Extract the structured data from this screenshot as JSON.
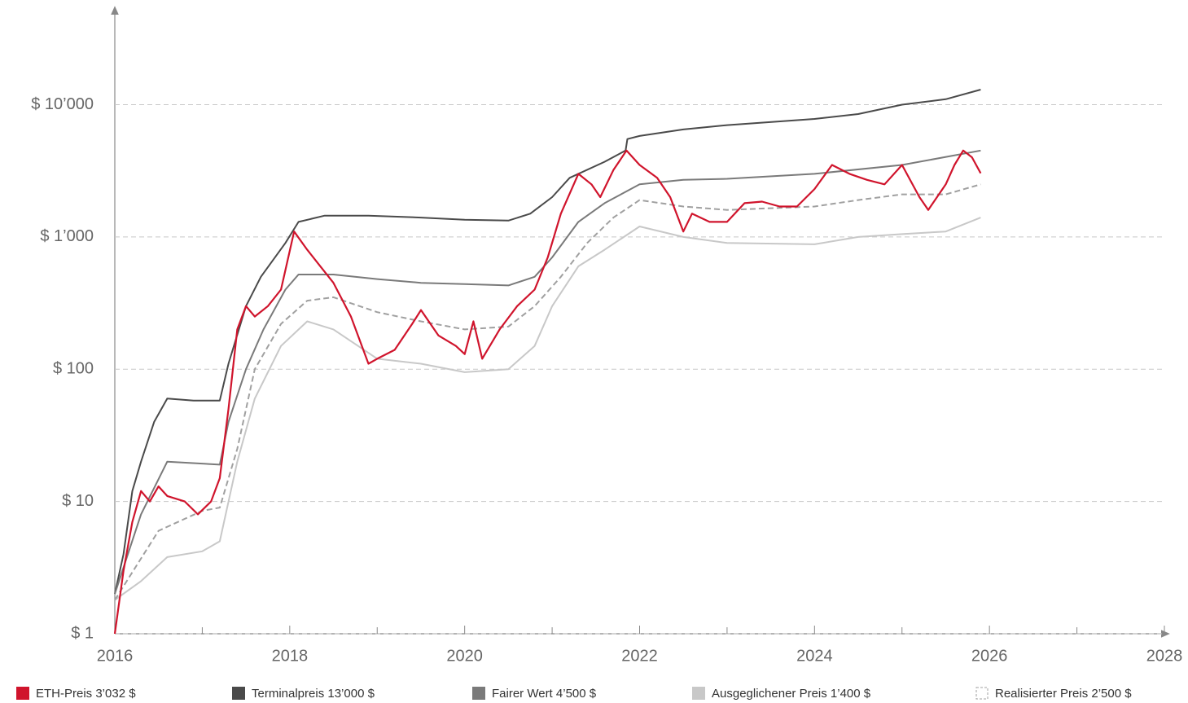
{
  "chart_data": {
    "type": "line",
    "log_y": true,
    "grid": true,
    "xlim": [
      2016,
      2028
    ],
    "xticks": [
      2016,
      2018,
      2020,
      2022,
      2024,
      2026,
      2028
    ],
    "xminor_ticks": [
      2017,
      2019,
      2021,
      2023,
      2025,
      2027
    ],
    "ylim": [
      1,
      50000
    ],
    "yticks": [
      {
        "value": 1,
        "label": "$ 1"
      },
      {
        "value": 10,
        "label": "$ 10"
      },
      {
        "value": 100,
        "label": "$ 100"
      },
      {
        "value": 1000,
        "label": "$ 1’000"
      },
      {
        "value": 10000,
        "label": "$ 10’000"
      }
    ],
    "series": [
      {
        "name": "Terminalpreis 13’000 $",
        "color": "#4a4a4a",
        "style": "solid",
        "x": [
          2016,
          2016.1,
          2016.2,
          2016.3,
          2016.45,
          2016.6,
          2016.9,
          2017.2,
          2017.3,
          2017.5,
          2017.67,
          2017.95,
          2018.1,
          2018.4,
          2018.9,
          2019.5,
          2020,
          2020.5,
          2020.75,
          2021.0,
          2021.2,
          2021.6,
          2021.84,
          2021.86,
          2022,
          2022.5,
          2023,
          2024,
          2024.5,
          2025,
          2025.5,
          2025.9
        ],
        "values": [
          2,
          4,
          12,
          20,
          40,
          60,
          58,
          58,
          110,
          300,
          500,
          900,
          1300,
          1450,
          1450,
          1400,
          1350,
          1330,
          1500,
          2000,
          2800,
          3700,
          4500,
          5500,
          5800,
          6500,
          7000,
          7800,
          8500,
          10000,
          11000,
          13000
        ]
      },
      {
        "name": "Fairer Wert 4’500 $",
        "color": "#7a7a7a",
        "style": "solid",
        "x": [
          2016,
          2016.15,
          2016.3,
          2016.6,
          2017.2,
          2017.3,
          2017.5,
          2017.7,
          2017.95,
          2018.1,
          2018.5,
          2019,
          2019.5,
          2020,
          2020.5,
          2020.8,
          2021.0,
          2021.3,
          2021.6,
          2022,
          2022.5,
          2023,
          2024,
          2025,
          2025.9
        ],
        "values": [
          2,
          4,
          8,
          20,
          19,
          40,
          100,
          200,
          400,
          520,
          520,
          480,
          450,
          440,
          430,
          500,
          700,
          1300,
          1800,
          2500,
          2700,
          2750,
          3000,
          3500,
          4500
        ]
      },
      {
        "name": "Ausgeglichener Preis 1’400 $",
        "color": "#c8c8c8",
        "style": "solid",
        "x": [
          2016,
          2016.3,
          2016.6,
          2017,
          2017.2,
          2017.4,
          2017.6,
          2017.9,
          2018.2,
          2018.5,
          2019,
          2019.5,
          2020,
          2020.5,
          2020.8,
          2021.0,
          2021.3,
          2021.6,
          2022,
          2022.5,
          2023,
          2024,
          2024.5,
          2025,
          2025.5,
          2025.9
        ],
        "values": [
          1.8,
          2.5,
          3.8,
          4.2,
          5,
          20,
          60,
          150,
          230,
          200,
          120,
          110,
          95,
          100,
          150,
          300,
          600,
          800,
          1200,
          1000,
          900,
          880,
          1000,
          1050,
          1100,
          1400
        ]
      },
      {
        "name": "Realisierter Preis 2’500 $",
        "color": "#a0a0a0",
        "style": "dashed",
        "x": [
          2016,
          2016.5,
          2017,
          2017.2,
          2017.4,
          2017.6,
          2017.9,
          2018.2,
          2018.5,
          2019,
          2019.5,
          2020,
          2020.5,
          2020.8,
          2021.1,
          2021.4,
          2021.7,
          2022,
          2022.5,
          2023,
          2024,
          2024.5,
          2025,
          2025.5,
          2025.9
        ],
        "values": [
          1.8,
          6,
          8.5,
          9,
          25,
          100,
          220,
          330,
          350,
          270,
          230,
          200,
          210,
          300,
          500,
          900,
          1400,
          1900,
          1700,
          1600,
          1700,
          1900,
          2100,
          2100,
          2500
        ]
      },
      {
        "name": "ETH-Preis 3’032 $",
        "color": "#d0142c",
        "style": "solid",
        "x": [
          2016,
          2016.1,
          2016.2,
          2016.3,
          2016.4,
          2016.5,
          2016.6,
          2016.8,
          2016.95,
          2017.1,
          2017.2,
          2017.3,
          2017.4,
          2017.5,
          2017.6,
          2017.75,
          2017.9,
          2018.05,
          2018.2,
          2018.35,
          2018.5,
          2018.7,
          2018.9,
          2019.0,
          2019.2,
          2019.4,
          2019.5,
          2019.7,
          2019.9,
          2020.0,
          2020.1,
          2020.2,
          2020.4,
          2020.6,
          2020.8,
          2020.95,
          2021.1,
          2021.3,
          2021.45,
          2021.55,
          2021.7,
          2021.85,
          2022.0,
          2022.2,
          2022.35,
          2022.5,
          2022.6,
          2022.8,
          2023.0,
          2023.2,
          2023.4,
          2023.6,
          2023.8,
          2024.0,
          2024.2,
          2024.4,
          2024.6,
          2024.8,
          2025.0,
          2025.2,
          2025.3,
          2025.5,
          2025.6,
          2025.7,
          2025.8,
          2025.9
        ],
        "values": [
          1,
          3,
          7,
          12,
          10,
          13,
          11,
          10,
          8,
          10,
          15,
          50,
          200,
          300,
          250,
          300,
          400,
          1100,
          800,
          600,
          450,
          250,
          110,
          120,
          140,
          220,
          280,
          180,
          150,
          130,
          230,
          120,
          200,
          300,
          400,
          700,
          1500,
          3000,
          2500,
          2000,
          3200,
          4500,
          3500,
          2800,
          2000,
          1100,
          1500,
          1300,
          1300,
          1800,
          1850,
          1700,
          1700,
          2300,
          3500,
          3000,
          2700,
          2500,
          3500,
          2000,
          1600,
          2500,
          3500,
          4500,
          4000,
          3032
        ]
      }
    ],
    "legend_order": [
      4,
      0,
      1,
      2,
      3
    ]
  }
}
